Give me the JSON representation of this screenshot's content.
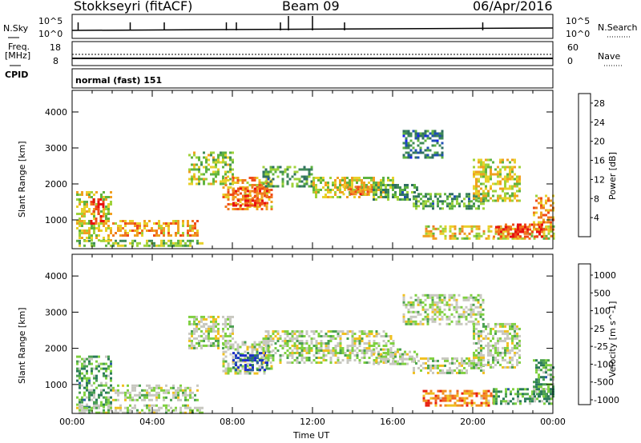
{
  "header": {
    "station": "Stokkseyri (fitACF)",
    "beam": "Beam 09",
    "date": "06/Apr/2016"
  },
  "strips": {
    "nsky_label": "N.Sky",
    "nsky_ticks": [
      "10^5",
      "10^0"
    ],
    "nsearch_label": "N.Search",
    "nsearch_ticks": [
      "10^5",
      "10^0"
    ],
    "freq_label_1": "Freq.",
    "freq_label_2": "[MHz]",
    "freq_ticks": [
      "18",
      "8"
    ],
    "nave_label": "Nave",
    "nave_ticks": [
      "60",
      "0"
    ],
    "cpid_label": "CPID",
    "cpid_value": "normal (fast) 151"
  },
  "colors": {
    "power": [
      "#1a24e8",
      "#1f4fb3",
      "#2f6f62",
      "#3f8a58",
      "#5fb340",
      "#9fd23a",
      "#e8d12a",
      "#f0a020",
      "#f07820",
      "#ef4a1a",
      "#e81010"
    ],
    "velocity_scale": [
      "#1e2fc8",
      "#2a5aa8",
      "#2a7a5a",
      "#4aa050",
      "#7fd040",
      "#c8c8c0",
      "#c8c8c0",
      "#f0c020",
      "#f09020",
      "#f06020",
      "#e82010"
    ]
  },
  "chart_data": [
    {
      "type": "heatmap",
      "title": "",
      "xlabel": "Time UT",
      "ylabel": "Slant Range [km]",
      "x_ticks": [
        "00:00",
        "04:00",
        "08:00",
        "12:00",
        "16:00",
        "20:00",
        "00:00"
      ],
      "y_ticks": [
        1000,
        2000,
        3000,
        4000
      ],
      "xlim": [
        0,
        24
      ],
      "ylim": [
        200,
        4600
      ],
      "colorbar_label": "Power [dB]",
      "colorbar_ticks": [
        4,
        8,
        12,
        16,
        20,
        24,
        28
      ],
      "colorbar_range": [
        0,
        30
      ],
      "regions": [
        {
          "t0": 0.2,
          "t1": 2.0,
          "r0": 400,
          "r1": 1800,
          "level": 0.55
        },
        {
          "t0": 0.9,
          "t1": 1.6,
          "r0": 900,
          "r1": 1600,
          "level": 0.95
        },
        {
          "t0": 2.0,
          "t1": 6.2,
          "r0": 550,
          "r1": 1000,
          "level": 0.7
        },
        {
          "t0": 0.2,
          "t1": 6.5,
          "r0": 250,
          "r1": 450,
          "level": 0.45
        },
        {
          "t0": 5.8,
          "t1": 8.0,
          "r0": 2000,
          "r1": 2900,
          "level": 0.5
        },
        {
          "t0": 7.5,
          "t1": 10.0,
          "r0": 1300,
          "r1": 2200,
          "level": 0.7
        },
        {
          "t0": 8.0,
          "t1": 9.8,
          "r0": 1400,
          "r1": 1900,
          "level": 0.85
        },
        {
          "t0": 9.5,
          "t1": 12.0,
          "r0": 1900,
          "r1": 2500,
          "level": 0.35
        },
        {
          "t0": 12.0,
          "t1": 16.0,
          "r0": 1600,
          "r1": 2200,
          "level": 0.55
        },
        {
          "t0": 13.5,
          "t1": 15.0,
          "r0": 1700,
          "r1": 1950,
          "level": 0.75
        },
        {
          "t0": 15.0,
          "t1": 17.2,
          "r0": 1550,
          "r1": 2000,
          "level": 0.35
        },
        {
          "t0": 16.5,
          "t1": 18.5,
          "r0": 2700,
          "r1": 3500,
          "level": 0.25
        },
        {
          "t0": 17.0,
          "t1": 20.5,
          "r0": 1300,
          "r1": 1750,
          "level": 0.35
        },
        {
          "t0": 20.0,
          "t1": 22.3,
          "r0": 1500,
          "r1": 2700,
          "level": 0.55
        },
        {
          "t0": 17.5,
          "t1": 24.0,
          "r0": 450,
          "r1": 850,
          "level": 0.6
        },
        {
          "t0": 21.0,
          "t1": 23.5,
          "r0": 500,
          "r1": 900,
          "level": 0.9
        },
        {
          "t0": 23.0,
          "t1": 24.0,
          "r0": 700,
          "r1": 1700,
          "level": 0.7
        }
      ]
    },
    {
      "type": "heatmap",
      "title": "",
      "xlabel": "Time UT",
      "ylabel": "Slant Range [km]",
      "x_ticks": [
        "00:00",
        "04:00",
        "08:00",
        "12:00",
        "16:00",
        "20:00",
        "00:00"
      ],
      "y_ticks": [
        1000,
        2000,
        3000,
        4000
      ],
      "xlim": [
        0,
        24
      ],
      "ylim": [
        200,
        4600
      ],
      "colorbar_label": "Velocity [m s^-1]",
      "colorbar_ticks": [
        "1000",
        "500",
        "100",
        "25",
        "-25",
        "-100",
        "-500",
        "-1000"
      ],
      "regions": [
        {
          "t0": 0.2,
          "t1": 2.0,
          "r0": 400,
          "r1": 1800,
          "level": 0.35
        },
        {
          "t0": 2.0,
          "t1": 6.2,
          "r0": 550,
          "r1": 1000,
          "level": 0.5
        },
        {
          "t0": 0.2,
          "t1": 6.5,
          "r0": 250,
          "r1": 450,
          "level": 0.5
        },
        {
          "t0": 5.8,
          "t1": 8.0,
          "r0": 2000,
          "r1": 2900,
          "level": 0.5
        },
        {
          "t0": 7.5,
          "t1": 10.0,
          "r0": 1300,
          "r1": 2200,
          "level": 0.5
        },
        {
          "t0": 8.0,
          "t1": 9.8,
          "r0": 1400,
          "r1": 1900,
          "level": 0.05
        },
        {
          "t0": 9.5,
          "t1": 16.0,
          "r0": 1600,
          "r1": 2500,
          "level": 0.5
        },
        {
          "t0": 15.0,
          "t1": 17.2,
          "r0": 1550,
          "r1": 2000,
          "level": 0.5
        },
        {
          "t0": 16.5,
          "t1": 20.5,
          "r0": 2700,
          "r1": 3500,
          "level": 0.5
        },
        {
          "t0": 17.0,
          "t1": 20.5,
          "r0": 1300,
          "r1": 1750,
          "level": 0.5
        },
        {
          "t0": 20.0,
          "t1": 22.3,
          "r0": 1500,
          "r1": 2700,
          "level": 0.5
        },
        {
          "t0": 17.5,
          "t1": 21.0,
          "r0": 450,
          "r1": 850,
          "level": 0.8
        },
        {
          "t0": 21.0,
          "t1": 24.0,
          "r0": 500,
          "r1": 900,
          "level": 0.35
        },
        {
          "t0": 23.0,
          "t1": 24.0,
          "r0": 700,
          "r1": 1700,
          "level": 0.35
        }
      ]
    }
  ]
}
